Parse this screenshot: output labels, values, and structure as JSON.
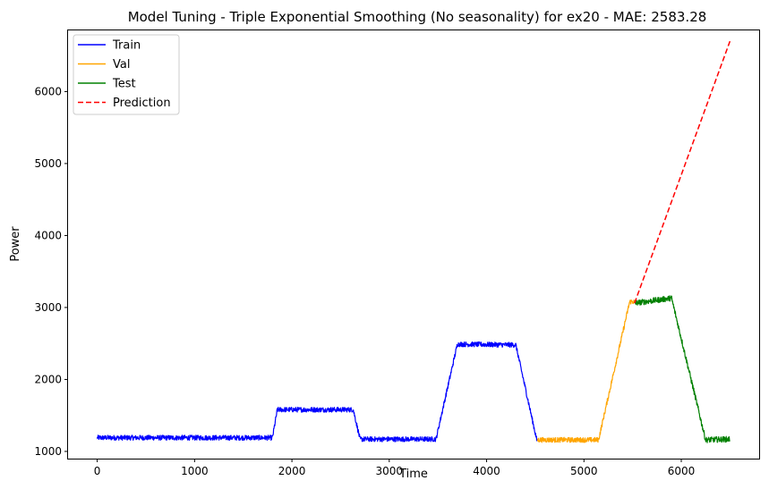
{
  "chart_data": {
    "type": "line",
    "title": "Model Tuning - Triple Exponential Smoothing (No seasonality) for ex20 - MAE: 2583.28",
    "xlabel": "Time",
    "ylabel": "Power",
    "xlim": [
      -300,
      6800
    ],
    "ylim": [
      900,
      6850
    ],
    "x_ticks": [
      0,
      1000,
      2000,
      3000,
      4000,
      5000,
      6000
    ],
    "y_ticks": [
      1000,
      2000,
      3000,
      4000,
      5000,
      6000
    ],
    "grid": false,
    "legend_position": "upper-left",
    "series": [
      {
        "name": "Train",
        "color": "#0000ff",
        "style": "solid",
        "noise": 35,
        "x": [
          0,
          1800,
          1850,
          2630,
          2700,
          3480,
          3700,
          4300,
          4520
        ],
        "y": [
          1190,
          1190,
          1580,
          1580,
          1170,
          1170,
          2490,
          2480,
          1130
        ]
      },
      {
        "name": "Val",
        "color": "#ffa500",
        "style": "solid",
        "noise": 35,
        "x": [
          4520,
          5150,
          5470,
          5520
        ],
        "y": [
          1160,
          1160,
          3080,
          3080
        ]
      },
      {
        "name": "Test",
        "color": "#008000",
        "style": "solid",
        "noise": 40,
        "x": [
          5520,
          5900,
          6250,
          6500
        ],
        "y": [
          3060,
          3130,
          1160,
          1170
        ]
      },
      {
        "name": "Prediction",
        "color": "#ff0000",
        "style": "dashed",
        "noise": 0,
        "x": [
          5520,
          6500
        ],
        "y": [
          3060,
          6700
        ]
      }
    ]
  }
}
